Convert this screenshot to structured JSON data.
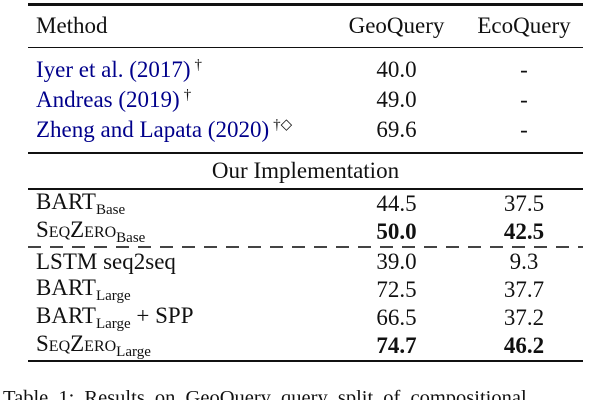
{
  "colors": {
    "text": "#111111",
    "citation_link": "#00008B",
    "rule": "#111111",
    "dash": "#444444"
  },
  "header": {
    "method": "Method",
    "geo": "GeoQuery",
    "eco": "EcoQuery"
  },
  "section_label": "Our Implementation",
  "rows_external": [
    {
      "label": "Iyer et al. (2017)",
      "sup": "†",
      "geo": "40.0",
      "eco": "-"
    },
    {
      "label": "Andreas (2019)",
      "sup": "†",
      "geo": "49.0",
      "eco": "-"
    },
    {
      "label": "Zheng and Lapata (2020)",
      "sup": "†◇",
      "geo": "69.6",
      "eco": "-"
    }
  ],
  "rows_implementation": [
    {
      "main": "BART",
      "sub": "Base",
      "suffix": "",
      "geo": "44.5",
      "eco": "37.5",
      "bold": false,
      "smallcaps": false,
      "dashed_before": false
    },
    {
      "main": "SeqZero",
      "sub": "Base",
      "suffix": "",
      "geo": "50.0",
      "eco": "42.5",
      "bold": true,
      "smallcaps": true,
      "dashed_before": false
    },
    {
      "main": "LSTM seq2seq",
      "sub": "",
      "suffix": "",
      "geo": "39.0",
      "eco": "9.3",
      "bold": false,
      "smallcaps": false,
      "dashed_before": true
    },
    {
      "main": "BART",
      "sub": "Large",
      "suffix": "",
      "geo": "72.5",
      "eco": "37.7",
      "bold": false,
      "smallcaps": false,
      "dashed_before": false
    },
    {
      "main": "BART",
      "sub": "Large",
      "suffix": " + SPP",
      "geo": "66.5",
      "eco": "37.2",
      "bold": false,
      "smallcaps": false,
      "dashed_before": false
    },
    {
      "main": "SeqZero",
      "sub": "Large",
      "suffix": "",
      "geo": "74.7",
      "eco": "46.2",
      "bold": true,
      "smallcaps": true,
      "dashed_before": false
    }
  ],
  "caption": "Table 1: Results on GeoQuery query split of compositional"
}
